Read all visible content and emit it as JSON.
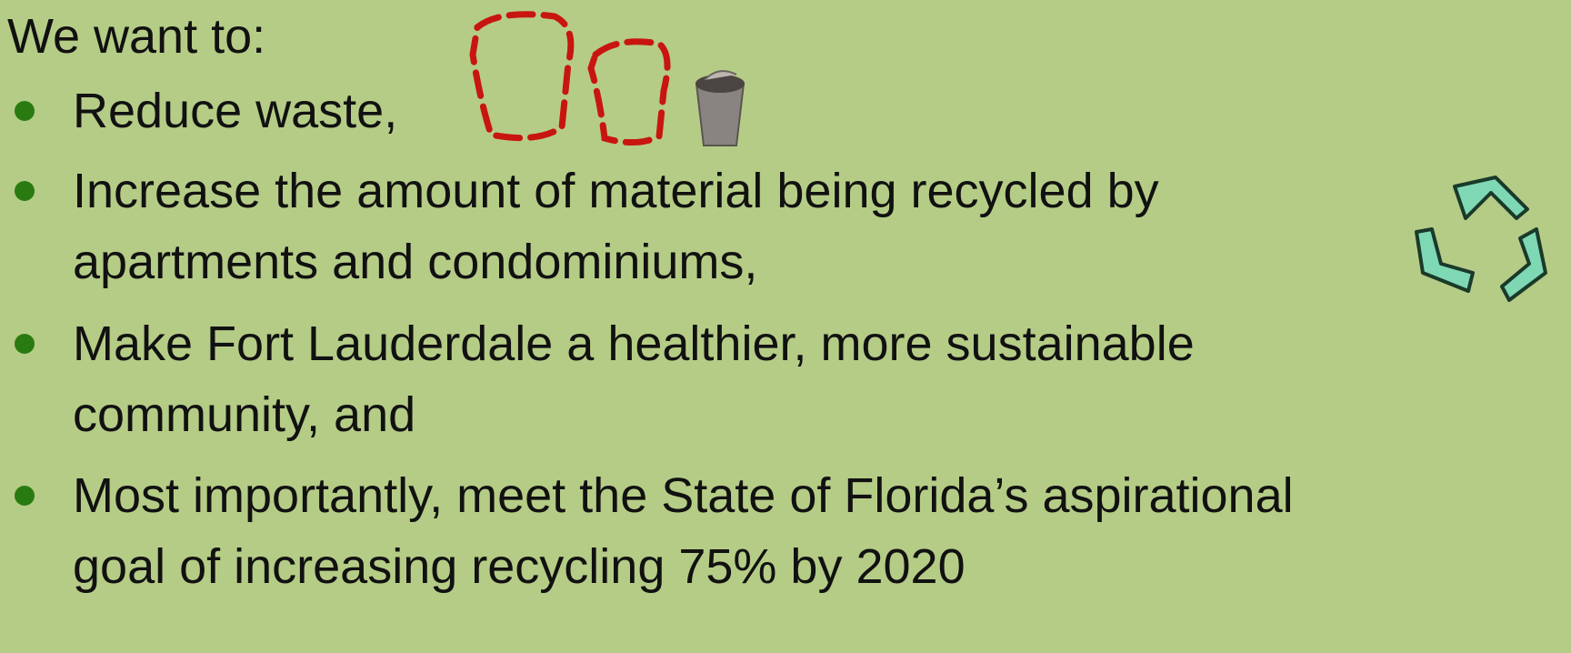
{
  "heading": "We want to:",
  "items": [
    {
      "lines": [
        "Reduce waste,"
      ]
    },
    {
      "lines": [
        "Increase the amount of material being recycled by",
        "apartments and condominiums,"
      ]
    },
    {
      "lines": [
        "Make Fort Lauderdale a healthier, more sustainable",
        "community, and"
      ]
    },
    {
      "lines": [
        "Most importantly, meet the State of Florida’s aspirational",
        "goal of increasing recycling 75% by 2020"
      ]
    }
  ]
}
